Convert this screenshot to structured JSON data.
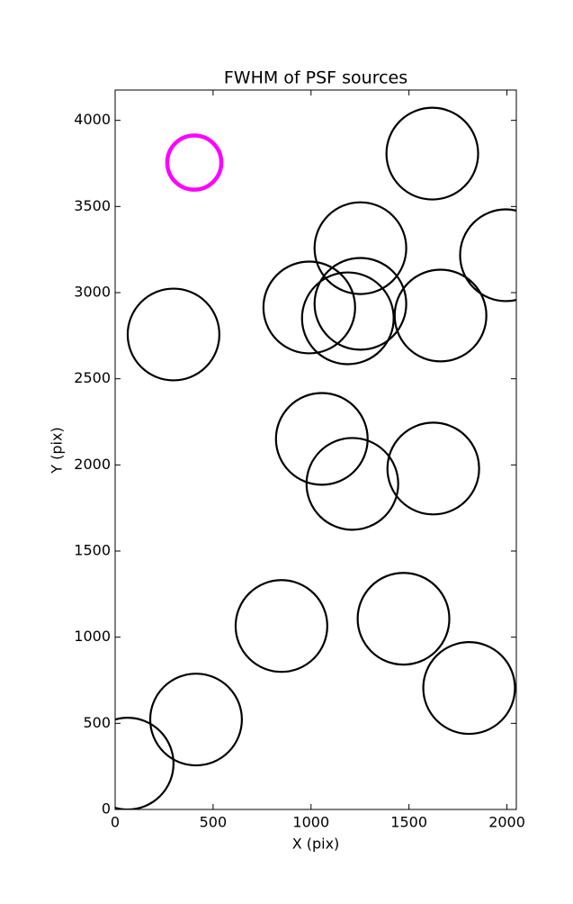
{
  "chart_data": {
    "type": "scatter",
    "title": "FWHM of PSF sources",
    "x_label": "X (pix)",
    "y_label": "Y (pix)",
    "xlim": [
      0,
      2048
    ],
    "ylim": [
      0,
      4176
    ],
    "xticks": [
      0,
      500,
      1000,
      1500,
      2000
    ],
    "yticks": [
      0,
      500,
      1000,
      1500,
      2000,
      2500,
      3000,
      3500,
      4000
    ],
    "series": [
      {
        "color": "#000000",
        "x": [
          1619,
          1252,
          1995,
          991,
          1252,
          1188,
          1661,
          298,
          1055,
          1211,
          1624,
          849,
          1472,
          1807,
          413,
          64
        ],
        "values": [
          3807,
          3258,
          3217,
          2914,
          2935,
          2851,
          2867,
          2757,
          2151,
          1890,
          1979,
          1065,
          1107,
          705,
          522,
          266
        ],
        "radius": [
          234,
          234,
          234,
          234,
          234,
          234,
          234,
          234,
          234,
          234,
          234,
          234,
          234,
          234,
          234,
          234
        ]
      },
      {
        "color": "#ff00ff",
        "x": [
          404
        ],
        "values": [
          3755
        ],
        "radius": [
          138
        ]
      }
    ]
  }
}
